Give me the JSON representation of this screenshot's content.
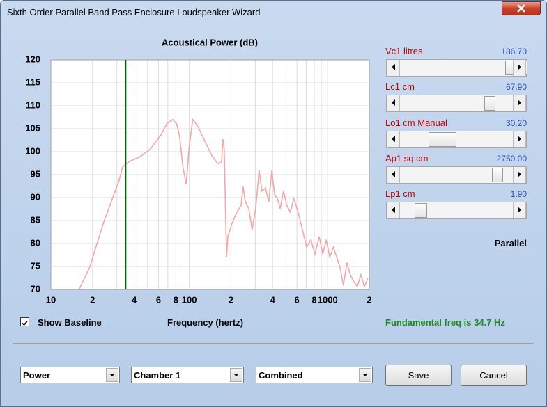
{
  "window": {
    "title": "Sixth Order Parallel Band Pass Enclosure Loudspeaker Wizard"
  },
  "chart_data": {
    "type": "line",
    "title": "Acoustical Power (dB)",
    "x_label": "Frequency (hertz)",
    "x_scale": "log",
    "grid": true,
    "xlim": [
      10,
      2000
    ],
    "ylim": [
      70,
      120
    ],
    "xticks": [
      10,
      {
        "value": 20,
        "label": "2"
      },
      {
        "value": 40,
        "label": "4"
      },
      {
        "value": 60,
        "label": "6"
      },
      {
        "value": 80,
        "label": "8"
      },
      100,
      {
        "value": 200,
        "label": "2"
      },
      {
        "value": 400,
        "label": "4"
      },
      {
        "value": 600,
        "label": "6"
      },
      {
        "value": 800,
        "label": "8"
      },
      1000,
      {
        "value": 2000,
        "label": "2"
      }
    ],
    "x_minor_grid": [
      30,
      50,
      70,
      90,
      300,
      500,
      700,
      900
    ],
    "yticks": [
      70,
      75,
      80,
      85,
      90,
      95,
      100,
      105,
      110,
      115,
      120
    ],
    "x": [
      16,
      19,
      24,
      31,
      33,
      37,
      44,
      52,
      62,
      69,
      76,
      81,
      85,
      90,
      95,
      100,
      106,
      114,
      131,
      147,
      161,
      171,
      175,
      179,
      186,
      190,
      204,
      221,
      237,
      245,
      254,
      269,
      285,
      302,
      320,
      335,
      355,
      376,
      395,
      414,
      434,
      454,
      480,
      507,
      538,
      569,
      612,
      657,
      704,
      756,
      810,
      869,
      923,
      977,
      1037,
      1099,
      1162,
      1232,
      1299,
      1379,
      1459,
      1545,
      1639,
      1738,
      1842,
      1953
    ],
    "series": [
      {
        "color": "#f4a7a7",
        "values": [
          70,
          74.7,
          84.5,
          93.6,
          96.7,
          97.9,
          98.9,
          100.5,
          103.5,
          106.1,
          107,
          106.1,
          103.5,
          96.7,
          92.9,
          101.2,
          107,
          105.8,
          102,
          98.9,
          97.4,
          97.7,
          102.7,
          100.5,
          77,
          81.5,
          84.5,
          86.8,
          88.3,
          92.4,
          89.1,
          87.6,
          83,
          87.6,
          95.9,
          91.4,
          92.1,
          89.1,
          95.9,
          90.6,
          89.8,
          87.6,
          91.4,
          88.3,
          86.8,
          89.8,
          86.8,
          83,
          79.2,
          80.8,
          77.7,
          81.5,
          77.7,
          80.8,
          77,
          79.2,
          77,
          74.7,
          70.9,
          75.8,
          73.2,
          71.7,
          70.6,
          73.2,
          70.6,
          72.4
        ]
      }
    ],
    "marker_x": 34.7,
    "marker_color": "#006400"
  },
  "checkbox": {
    "label": "Show Baseline",
    "checked": true
  },
  "status": "Fundamental freq is 34.7 Hz",
  "sliders": [
    {
      "label": "Vc1  litres",
      "value": "186.70"
    },
    {
      "label": "Lc1  cm",
      "value": "67.90"
    },
    {
      "label": "Lo1  cm  Manual",
      "value": "30.20"
    },
    {
      "label": "Ap1  sq cm",
      "value": "2750.00"
    },
    {
      "label": "Lp1  cm",
      "value": "1.90"
    }
  ],
  "mode": "Parallel",
  "dropdowns": [
    "Power",
    "Chamber 1",
    "Combined"
  ],
  "buttons": [
    "Save",
    "Cancel"
  ]
}
